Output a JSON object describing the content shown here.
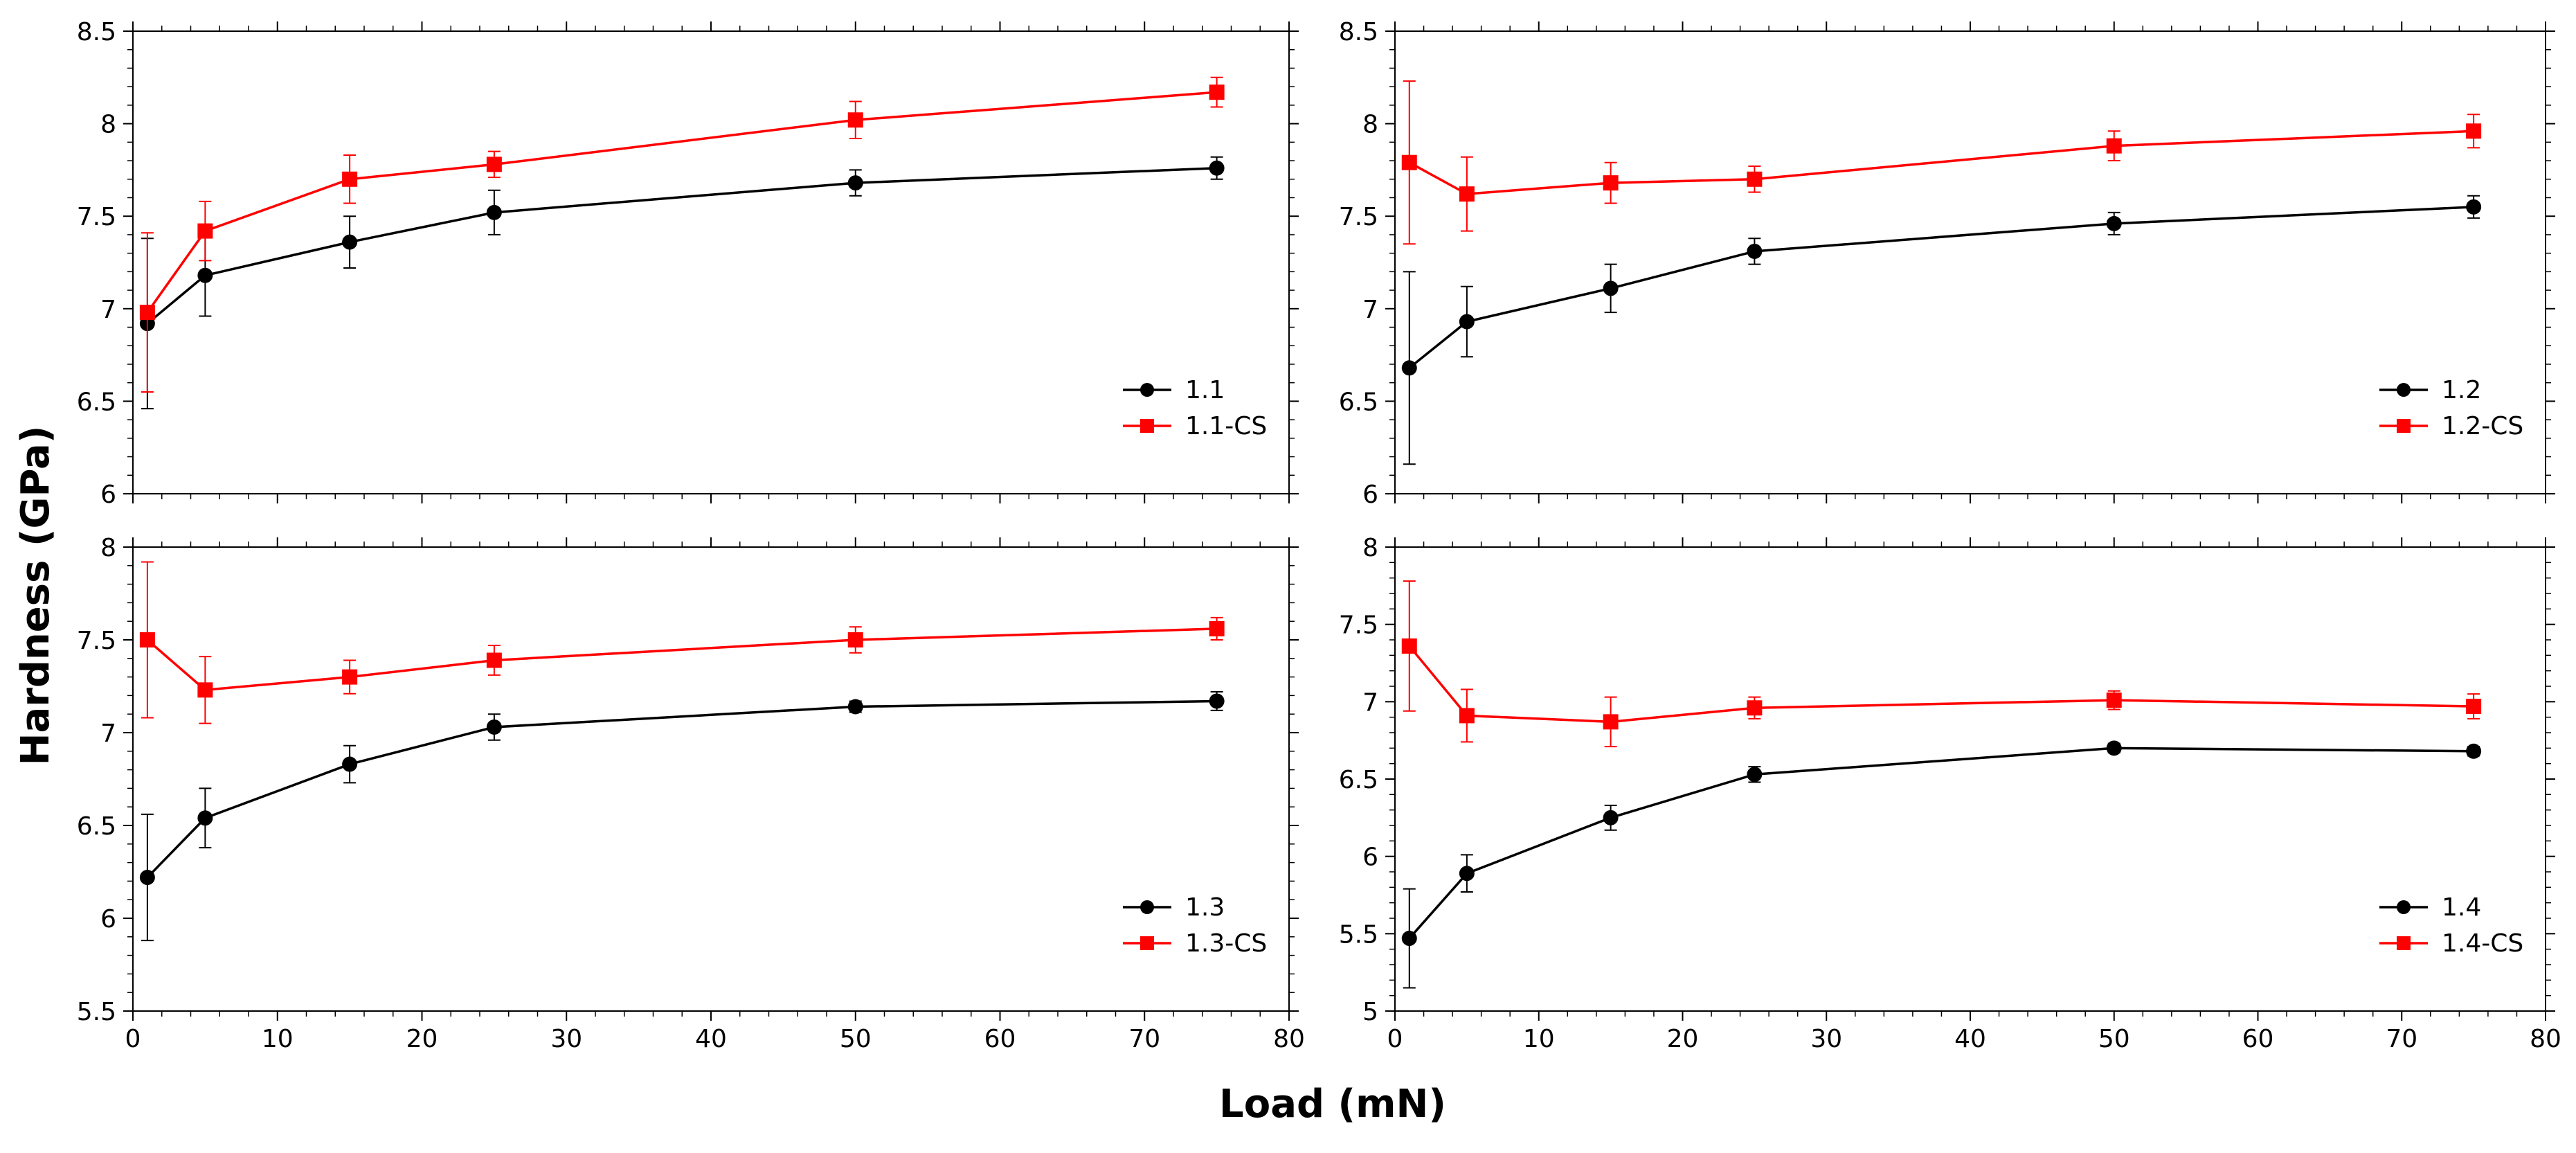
{
  "figure": {
    "ylabel": "Hardness (GPa)",
    "xlabel": "Load (mN)"
  },
  "chart_data": [
    {
      "type": "line",
      "panel": "top-left",
      "xlim": [
        0,
        80
      ],
      "ylim": [
        6,
        8.5
      ],
      "xticks": [
        0,
        10,
        20,
        30,
        40,
        50,
        60,
        70,
        80
      ],
      "yticks": [
        6,
        6.5,
        7,
        7.5,
        8,
        8.5
      ],
      "ytick_labels": [
        "6",
        "6.5",
        "7",
        "7.5",
        "8",
        "8.5"
      ],
      "show_xtick_labels": false,
      "legend_position": "bottom-right",
      "series": [
        {
          "name": "1.1",
          "color": "#000000",
          "marker": "circle",
          "x": [
            1,
            5,
            15,
            25,
            50,
            75
          ],
          "y": [
            6.92,
            7.18,
            7.36,
            7.52,
            7.68,
            7.76
          ],
          "err": [
            0.46,
            0.22,
            0.14,
            0.12,
            0.07,
            0.06
          ]
        },
        {
          "name": "1.1-CS",
          "color": "#ff0000",
          "marker": "square",
          "x": [
            1,
            5,
            15,
            25,
            50,
            75
          ],
          "y": [
            6.98,
            7.42,
            7.7,
            7.78,
            8.02,
            8.17
          ],
          "err": [
            0.43,
            0.16,
            0.13,
            0.07,
            0.1,
            0.08
          ]
        }
      ]
    },
    {
      "type": "line",
      "panel": "top-right",
      "xlim": [
        0,
        80
      ],
      "ylim": [
        6,
        8.5
      ],
      "xticks": [
        0,
        10,
        20,
        30,
        40,
        50,
        60,
        70,
        80
      ],
      "yticks": [
        6,
        6.5,
        7,
        7.5,
        8,
        8.5
      ],
      "ytick_labels": [
        "6",
        "6.5",
        "7",
        "7.5",
        "8",
        "8.5"
      ],
      "show_xtick_labels": false,
      "legend_position": "bottom-right",
      "series": [
        {
          "name": "1.2",
          "color": "#000000",
          "marker": "circle",
          "x": [
            1,
            5,
            15,
            25,
            50,
            75
          ],
          "y": [
            6.68,
            6.93,
            7.11,
            7.31,
            7.46,
            7.55
          ],
          "err": [
            0.52,
            0.19,
            0.13,
            0.07,
            0.06,
            0.06
          ]
        },
        {
          "name": "1.2-CS",
          "color": "#ff0000",
          "marker": "square",
          "x": [
            1,
            5,
            15,
            25,
            50,
            75
          ],
          "y": [
            7.79,
            7.62,
            7.68,
            7.7,
            7.88,
            7.96
          ],
          "err": [
            0.44,
            0.2,
            0.11,
            0.07,
            0.08,
            0.09
          ]
        }
      ]
    },
    {
      "type": "line",
      "panel": "bottom-left",
      "xlim": [
        0,
        80
      ],
      "ylim": [
        5.5,
        8
      ],
      "xticks": [
        0,
        10,
        20,
        30,
        40,
        50,
        60,
        70,
        80
      ],
      "xtick_labels": [
        "0",
        "10",
        "20",
        "30",
        "40",
        "50",
        "60",
        "70",
        "80"
      ],
      "yticks": [
        5.5,
        6,
        6.5,
        7,
        7.5,
        8
      ],
      "ytick_labels": [
        "5.5",
        "6",
        "6.5",
        "7",
        "7.5",
        "8"
      ],
      "show_xtick_labels": true,
      "legend_position": "bottom-right",
      "series": [
        {
          "name": "1.3",
          "color": "#000000",
          "marker": "circle",
          "x": [
            1,
            5,
            15,
            25,
            50,
            75
          ],
          "y": [
            6.22,
            6.54,
            6.83,
            7.03,
            7.14,
            7.17
          ],
          "err": [
            0.34,
            0.16,
            0.1,
            0.07,
            0.03,
            0.05
          ]
        },
        {
          "name": "1.3-CS",
          "color": "#ff0000",
          "marker": "square",
          "x": [
            1,
            5,
            15,
            25,
            50,
            75
          ],
          "y": [
            7.5,
            7.23,
            7.3,
            7.39,
            7.5,
            7.56
          ],
          "err": [
            0.42,
            0.18,
            0.09,
            0.08,
            0.07,
            0.06
          ]
        }
      ]
    },
    {
      "type": "line",
      "panel": "bottom-right",
      "xlim": [
        0,
        80
      ],
      "ylim": [
        5,
        8
      ],
      "xticks": [
        0,
        10,
        20,
        30,
        40,
        50,
        60,
        70,
        80
      ],
      "xtick_labels": [
        "0",
        "10",
        "20",
        "30",
        "40",
        "50",
        "60",
        "70",
        "80"
      ],
      "yticks": [
        5,
        5.5,
        6,
        6.5,
        7,
        7.5,
        8
      ],
      "ytick_labels": [
        "5",
        "5.5",
        "6",
        "6.5",
        "7",
        "7.5",
        "8"
      ],
      "show_xtick_labels": true,
      "legend_position": "bottom-right",
      "series": [
        {
          "name": "1.4",
          "color": "#000000",
          "marker": "circle",
          "x": [
            1,
            5,
            15,
            25,
            50,
            75
          ],
          "y": [
            5.47,
            5.89,
            6.25,
            6.53,
            6.7,
            6.68
          ],
          "err": [
            0.32,
            0.12,
            0.08,
            0.05,
            0.03,
            0.03
          ]
        },
        {
          "name": "1.4-CS",
          "color": "#ff0000",
          "marker": "square",
          "x": [
            1,
            5,
            15,
            25,
            50,
            75
          ],
          "y": [
            7.36,
            6.91,
            6.87,
            6.96,
            7.01,
            6.97
          ],
          "err": [
            0.42,
            0.17,
            0.16,
            0.07,
            0.06,
            0.08
          ]
        }
      ]
    }
  ]
}
